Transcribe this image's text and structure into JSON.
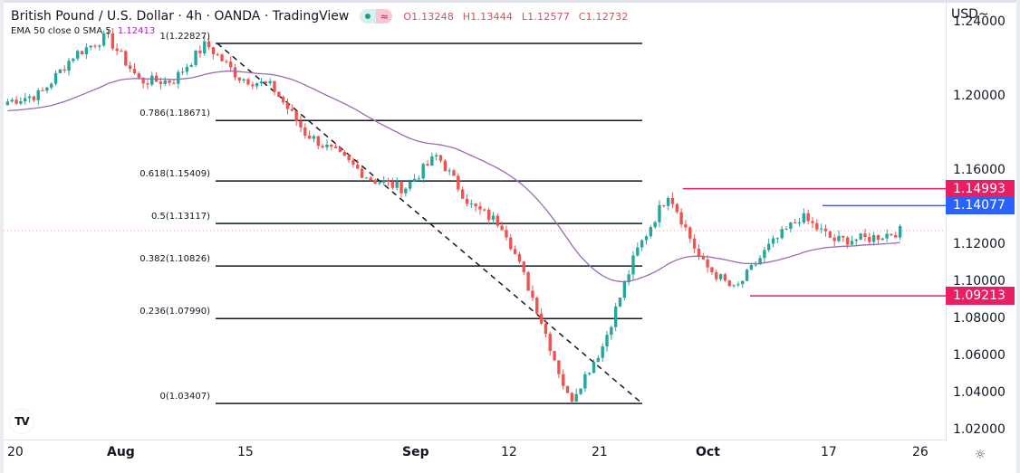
{
  "header": {
    "title": "British Pound / U.S. Dollar · 4h · OANDA · TradingView",
    "ohlc": {
      "open": "O1.13248",
      "high": "H1.13444",
      "low": "L1.12577",
      "close": "C1.12732"
    },
    "indicator_label": "EMA 50 close 0 SMA 5",
    "indicator_value": "1.12413"
  },
  "price_axis": {
    "currency": "USD~",
    "ticks": [
      "1.24000",
      "1.20000",
      "1.16000",
      "1.12000",
      "1.10000",
      "1.08000",
      "1.06000",
      "1.04000",
      "1.02000"
    ],
    "tags": [
      {
        "label": "1.14993",
        "color": "#e91e63"
      },
      {
        "label": "1.14077",
        "color": "#2962ff"
      },
      {
        "label": "1.09213",
        "color": "#e91e63"
      }
    ]
  },
  "time_axis": {
    "ticks": [
      {
        "label": "20",
        "bold": false
      },
      {
        "label": "Aug",
        "bold": true
      },
      {
        "label": "15",
        "bold": false
      },
      {
        "label": "Sep",
        "bold": true
      },
      {
        "label": "12",
        "bold": false
      },
      {
        "label": "21",
        "bold": false
      },
      {
        "label": "Oct",
        "bold": true
      },
      {
        "label": "17",
        "bold": false
      },
      {
        "label": "26",
        "bold": false
      }
    ]
  },
  "fibonacci": [
    {
      "label": "1(1.22827)"
    },
    {
      "label": "0.786(1.18671)"
    },
    {
      "label": "0.618(1.15409)"
    },
    {
      "label": "0.5(1.13117)"
    },
    {
      "label": "0.382(1.10826)"
    },
    {
      "label": "0.236(1.07990)"
    },
    {
      "label": "0(1.03407)"
    }
  ],
  "icons": {
    "settings": "gear-icon",
    "logo": "tradingview-logo-icon",
    "pill_dot": "live-dot-icon",
    "pill_eq": "approx-equal-icon"
  },
  "logo_text": "TV",
  "gear_glyph": "☼",
  "colors": {
    "up": "#26a69a",
    "down": "#ef5350",
    "ema": "#9c6ab3",
    "resistance": "#e91e63",
    "blue_level": "#2962ff",
    "fib": "#131722"
  },
  "chart_data": {
    "type": "candlestick",
    "title": "British Pound / U.S. Dollar · 4h · OANDA",
    "symbol": "GBPUSD",
    "timeframe": "4h",
    "x_ticks": [
      "20",
      "Aug",
      "15",
      "Sep",
      "12",
      "21",
      "Oct",
      "17",
      "26"
    ],
    "ylim": [
      1.02,
      1.245
    ],
    "y_ticks": [
      1.24,
      1.2,
      1.16,
      1.12,
      1.1,
      1.08,
      1.06,
      1.04,
      1.02
    ],
    "last_ohlc": {
      "open": 1.13248,
      "high": 1.13444,
      "low": 1.12577,
      "close": 1.12732
    },
    "ema50": 1.12413,
    "fibonacci_levels": [
      {
        "ratio": 1,
        "price": 1.22827
      },
      {
        "ratio": 0.786,
        "price": 1.18671
      },
      {
        "ratio": 0.618,
        "price": 1.15409
      },
      {
        "ratio": 0.5,
        "price": 1.13117
      },
      {
        "ratio": 0.382,
        "price": 1.10826
      },
      {
        "ratio": 0.236,
        "price": 1.0799
      },
      {
        "ratio": 0,
        "price": 1.03407
      }
    ],
    "horizontal_levels": [
      {
        "price": 1.14993,
        "color": "#e91e63",
        "kind": "resistance"
      },
      {
        "price": 1.14077,
        "color": "#2962ff",
        "kind": "resistance"
      },
      {
        "price": 1.09213,
        "color": "#e91e63",
        "kind": "support"
      }
    ],
    "price_path_approx": [
      {
        "date": "Jul 20",
        "close": 1.197
      },
      {
        "date": "Jul 25",
        "close": 1.201
      },
      {
        "date": "Aug 1",
        "close": 1.222
      },
      {
        "date": "Aug 3",
        "close": 1.232
      },
      {
        "date": "Aug 5",
        "close": 1.208
      },
      {
        "date": "Aug 10",
        "close": 1.208
      },
      {
        "date": "Aug 11",
        "close": 1.228
      },
      {
        "date": "Aug 15",
        "close": 1.21
      },
      {
        "date": "Aug 18",
        "close": 1.205
      },
      {
        "date": "Aug 23",
        "close": 1.18
      },
      {
        "date": "Aug 29",
        "close": 1.168
      },
      {
        "date": "Sep 1",
        "close": 1.155
      },
      {
        "date": "Sep 7",
        "close": 1.15
      },
      {
        "date": "Sep 12",
        "close": 1.168
      },
      {
        "date": "Sep 16",
        "close": 1.141
      },
      {
        "date": "Sep 21",
        "close": 1.13
      },
      {
        "date": "Sep 23",
        "close": 1.086
      },
      {
        "date": "Sep 26",
        "close": 1.035
      },
      {
        "date": "Sep 28",
        "close": 1.065
      },
      {
        "date": "Oct 1",
        "close": 1.115
      },
      {
        "date": "Oct 5",
        "close": 1.148
      },
      {
        "date": "Oct 7",
        "close": 1.11
      },
      {
        "date": "Oct 12",
        "close": 1.095
      },
      {
        "date": "Oct 14",
        "close": 1.118
      },
      {
        "date": "Oct 17",
        "close": 1.135
      },
      {
        "date": "Oct 20",
        "close": 1.122
      },
      {
        "date": "Oct 21",
        "close": 1.123
      },
      {
        "date": "Oct 24",
        "close": 1.127
      }
    ]
  }
}
